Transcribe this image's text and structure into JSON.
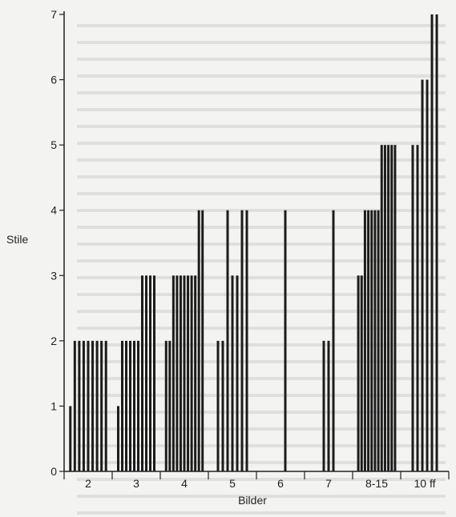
{
  "chart_data": {
    "type": "bar",
    "title": "",
    "xlabel": "Bilder",
    "ylabel": "Stile",
    "ylim": [
      0,
      7
    ],
    "yticks": [
      0,
      1,
      2,
      3,
      4,
      5,
      6,
      7
    ],
    "grid": false,
    "legend": "none",
    "bar_color": "#1c1c1c",
    "groups": [
      {
        "label": "2",
        "values": [
          1,
          2,
          2,
          2,
          2,
          2,
          2,
          2,
          2
        ]
      },
      {
        "label": "3",
        "values": [
          1,
          2,
          2,
          2,
          2,
          2,
          3,
          3,
          3,
          3
        ]
      },
      {
        "label": "4",
        "values": [
          2,
          2,
          3,
          3,
          3,
          3,
          3,
          3,
          3,
          4,
          4
        ]
      },
      {
        "label": "5",
        "values": [
          2,
          2,
          4,
          3,
          3,
          4,
          4
        ]
      },
      {
        "label": "6",
        "values": [
          4
        ]
      },
      {
        "label": "7",
        "values": [
          2,
          2,
          4
        ]
      },
      {
        "label": "8-15",
        "values": [
          3,
          3,
          4,
          4,
          4,
          4,
          4,
          5,
          5,
          5,
          5,
          5
        ]
      },
      {
        "label": "10 ff",
        "values": [
          5,
          5,
          6,
          6,
          7,
          7
        ]
      }
    ]
  }
}
